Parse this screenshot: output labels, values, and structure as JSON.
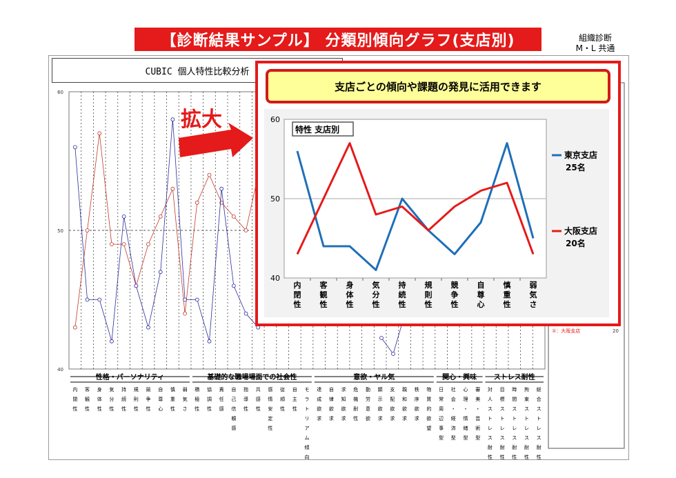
{
  "header": {
    "banner": "【診断結果サンプル】 分類別傾向グラフ(支店別)",
    "corner_line1": "組織診断",
    "corner_line2": "M・L 共通"
  },
  "background_sheet": {
    "title": "CUBIC 個人特性比較分析",
    "y_ticks": [
      "60",
      "50",
      "40"
    ],
    "groups": [
      "性格・パーソナリティ",
      "基礎的な職場場面での社会性",
      "意欲・ヤル気",
      "関心・興味",
      "ストレス耐性"
    ],
    "legend_osaka": "②：大阪支店",
    "legend_count": "20",
    "columns": [
      "内閉性",
      "客観性",
      "身体性",
      "気分性",
      "持続性",
      "規則性",
      "競争性",
      "自尊心",
      "慎重性",
      "弱気さ",
      "積極性",
      "協調性",
      "責任感",
      "自己信頼感",
      "指導性",
      "共感性",
      "感情安定性",
      "従順性",
      "自主性",
      "モラトリアム傾向",
      "達成欲求",
      "自律欲求",
      "求知欲求",
      "危機耐性",
      "勤労意欲",
      "顕示欲求",
      "支配欲求",
      "親和欲求",
      "秩序欲求",
      "物質的欲望",
      "日常周辺事型",
      "社会・経済型",
      "心理・情緒型",
      "審美・芸術型",
      "対人ストレス耐性",
      "目標ストレス耐性",
      "時間ストレス耐性",
      "拘束ストレス耐性",
      "総合ストレス耐性"
    ],
    "series_blue": [
      56,
      45,
      45,
      42,
      51,
      46,
      43,
      47,
      58,
      45,
      45,
      42,
      53,
      46,
      44,
      43
    ],
    "series_red": [
      43,
      50,
      57,
      49,
      49,
      46,
      49,
      51,
      53,
      44,
      52,
      54,
      52,
      51,
      50,
      54
    ]
  },
  "zoom_label": "拡大",
  "message": "支店ごとの傾向や課題の発見に活用できます",
  "chart_data": {
    "type": "line",
    "title": "特性 支店別",
    "categories": [
      "内閉性",
      "客観性",
      "身体性",
      "気分性",
      "持続性",
      "規則性",
      "競争性",
      "自尊心",
      "慎重性",
      "弱気さ"
    ],
    "series": [
      {
        "name": "東京支店",
        "sub": "25名",
        "color": "#1f6fb8",
        "values": [
          56,
          44,
          44,
          41,
          50,
          46,
          43,
          47,
          57,
          45
        ]
      },
      {
        "name": "大阪支店",
        "sub": "20名",
        "color": "#e51a1a",
        "values": [
          43,
          50,
          57,
          48,
          49,
          46,
          49,
          51,
          52,
          43
        ]
      }
    ],
    "ylim": [
      40,
      60
    ],
    "yticks": [
      40,
      50,
      60
    ],
    "grid": true
  }
}
